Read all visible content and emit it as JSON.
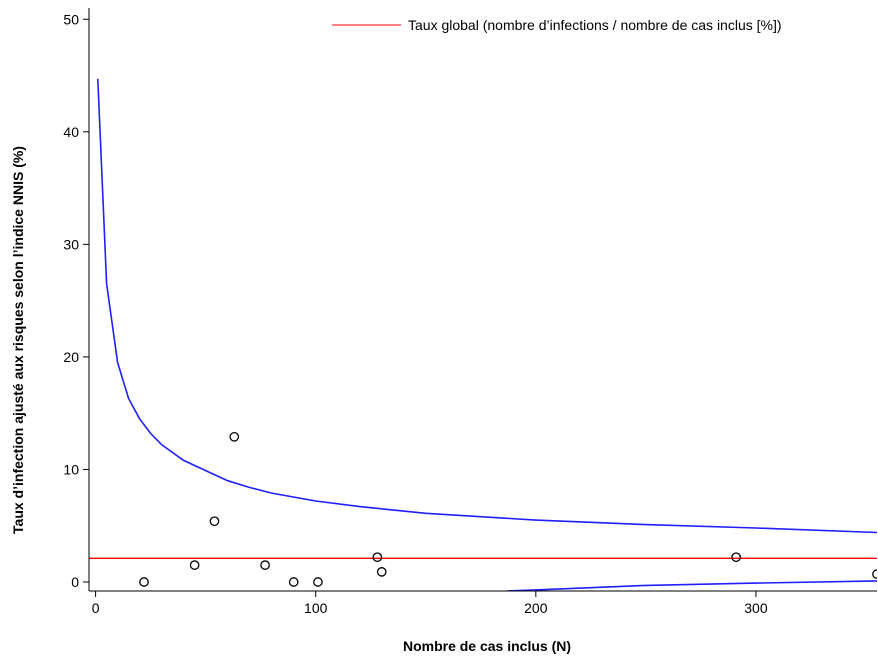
{
  "chart_data": {
    "type": "scatter",
    "title": "",
    "xlabel": "Nombre de cas inclus (N)",
    "ylabel": "Taux d’infection ajusté aux risques selon l’indice NNIS (%)",
    "xlim": [
      -3,
      355
    ],
    "ylim": [
      -0.8,
      51
    ],
    "x_ticks": [
      0,
      100,
      200,
      300
    ],
    "y_ticks": [
      0,
      10,
      20,
      30,
      40,
      50
    ],
    "x_tick_labels": [
      "0",
      "100",
      "200",
      "300"
    ],
    "y_tick_labels": [
      "0",
      "10",
      "20",
      "30",
      "40",
      "50"
    ],
    "grid": false,
    "legend_position": "top-right",
    "legend": [
      {
        "label": "Taux global (nombre d’infections / nombre de cas inclus [%])",
        "color": "#ff0000"
      }
    ],
    "reference_line": {
      "y": 2.1,
      "color": "#ff0000"
    },
    "points": [
      {
        "x": 22,
        "y": 0.0
      },
      {
        "x": 45,
        "y": 1.5
      },
      {
        "x": 54,
        "y": 5.4
      },
      {
        "x": 63,
        "y": 12.9
      },
      {
        "x": 77,
        "y": 1.5
      },
      {
        "x": 90,
        "y": 0.0
      },
      {
        "x": 101,
        "y": 0.0
      },
      {
        "x": 128,
        "y": 2.2
      },
      {
        "x": 130,
        "y": 0.9
      },
      {
        "x": 291,
        "y": 2.2
      },
      {
        "x": 355,
        "y": 0.7
      }
    ],
    "control_limits": {
      "color": "#1f1fff",
      "upper": [
        [
          1,
          44.7
        ],
        [
          5,
          26.5
        ],
        [
          10,
          19.5
        ],
        [
          15,
          16.3
        ],
        [
          20,
          14.5
        ],
        [
          25,
          13.2
        ],
        [
          30,
          12.2
        ],
        [
          40,
          10.8
        ],
        [
          50,
          9.9
        ],
        [
          60,
          9.0
        ],
        [
          70,
          8.4
        ],
        [
          80,
          7.9
        ],
        [
          100,
          7.2
        ],
        [
          120,
          6.7
        ],
        [
          150,
          6.1
        ],
        [
          200,
          5.5
        ],
        [
          250,
          5.1
        ],
        [
          300,
          4.8
        ],
        [
          355,
          4.4
        ]
      ],
      "lower": [
        [
          187,
          -0.8
        ],
        [
          200,
          -0.7
        ],
        [
          250,
          -0.3
        ],
        [
          300,
          -0.1
        ],
        [
          355,
          0.1
        ]
      ]
    },
    "marker_color": "#000000",
    "background": "#ffffff"
  }
}
